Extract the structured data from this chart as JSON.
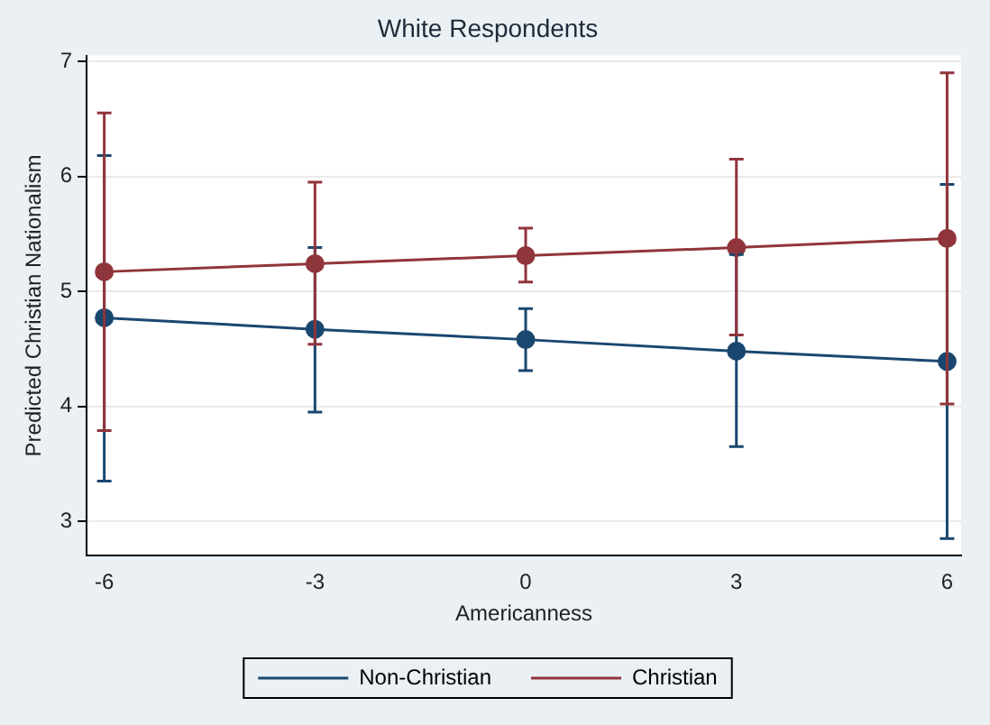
{
  "chart_data": {
    "type": "line",
    "title": "White Respondents",
    "xlabel": "Americanness",
    "ylabel": "Predicted Christian Nationalism",
    "x": [
      -6,
      -3,
      0,
      3,
      6
    ],
    "xlim": [
      -6.25,
      6.2
    ],
    "xticks": [
      -6,
      -3,
      0,
      3,
      6
    ],
    "ylim": [
      2.7,
      7.05
    ],
    "yticks": [
      3,
      4,
      5,
      6,
      7
    ],
    "grid": "y",
    "legend": "bottom",
    "marker": "circle",
    "line_style": "solid",
    "series": [
      {
        "name": "Non-Christian",
        "color": "#1a476f",
        "values": [
          4.77,
          4.67,
          4.58,
          4.48,
          4.39
        ],
        "errors": [
          [
            3.35,
            6.18
          ],
          [
            3.95,
            5.38
          ],
          [
            4.31,
            4.85
          ],
          [
            3.65,
            5.32
          ],
          [
            2.85,
            5.93
          ]
        ]
      },
      {
        "name": "Christian",
        "color": "#90353b",
        "values": [
          5.17,
          5.24,
          5.31,
          5.38,
          5.46
        ],
        "errors": [
          [
            3.79,
            6.55
          ],
          [
            4.54,
            5.95
          ],
          [
            5.08,
            5.55
          ],
          [
            4.62,
            6.15
          ],
          [
            4.02,
            6.9
          ]
        ]
      }
    ]
  }
}
